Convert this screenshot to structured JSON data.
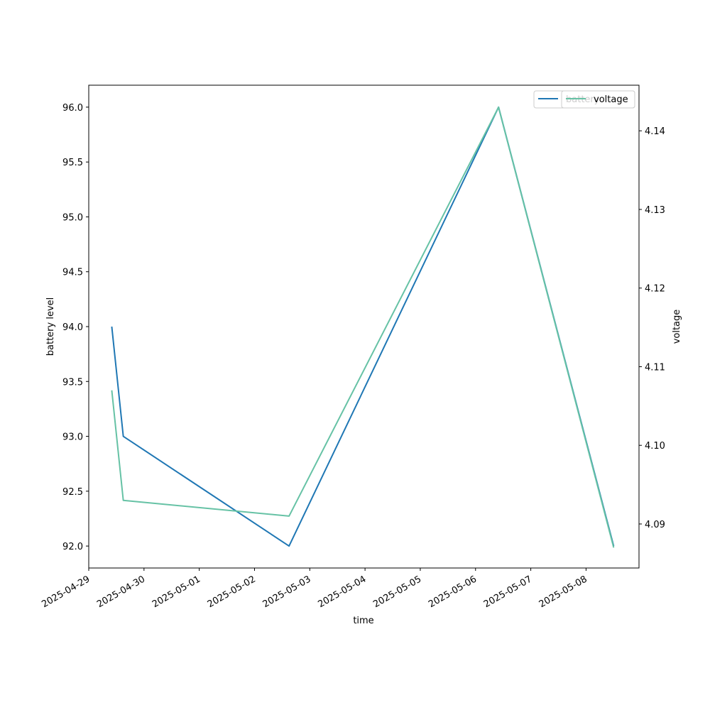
{
  "chart_data": {
    "type": "line",
    "xlabel": "time",
    "ylabel_left": "battery level",
    "ylabel_right": "voltage",
    "x_tick_labels": [
      "2025-04-29",
      "2025-04-30",
      "2025-05-01",
      "2025-05-02",
      "2025-05-03",
      "2025-05-04",
      "2025-05-05",
      "2025-05-06",
      "2025-05-07",
      "2025-05-08"
    ],
    "x_range": [
      "2025-04-29 00:00",
      "2025-05-08 23:00"
    ],
    "left_ylim": [
      91.8,
      96.2
    ],
    "left_ticks": [
      "92.0",
      "92.5",
      "93.0",
      "93.5",
      "94.0",
      "94.5",
      "95.0",
      "95.5",
      "96.0"
    ],
    "right_ylim": [
      4.0844,
      4.1458
    ],
    "right_ticks": [
      "4.09",
      "4.10",
      "4.11",
      "4.12",
      "4.13",
      "4.14"
    ],
    "series": [
      {
        "name": "battery",
        "axis": "left",
        "color": "#1f77b4",
        "points": [
          {
            "x": "2025-04-29 10:00",
            "y": 94.0
          },
          {
            "x": "2025-04-29 15:00",
            "y": 93.0
          },
          {
            "x": "2025-05-02 15:00",
            "y": 92.0
          },
          {
            "x": "2025-05-06 10:00",
            "y": 96.0
          },
          {
            "x": "2025-05-08 12:00",
            "y": 92.0
          }
        ]
      },
      {
        "name": "voltage",
        "axis": "right",
        "color": "#66c2a5",
        "points": [
          {
            "x": "2025-04-29 10:00",
            "y": 4.107
          },
          {
            "x": "2025-04-29 15:00",
            "y": 4.093
          },
          {
            "x": "2025-05-02 15:00",
            "y": 4.091
          },
          {
            "x": "2025-05-06 10:00",
            "y": 4.143
          },
          {
            "x": "2025-05-08 12:00",
            "y": 4.087
          }
        ]
      }
    ],
    "legend": {
      "position": "top-right",
      "entries": [
        "battery",
        "voltage"
      ]
    },
    "grid": false
  }
}
